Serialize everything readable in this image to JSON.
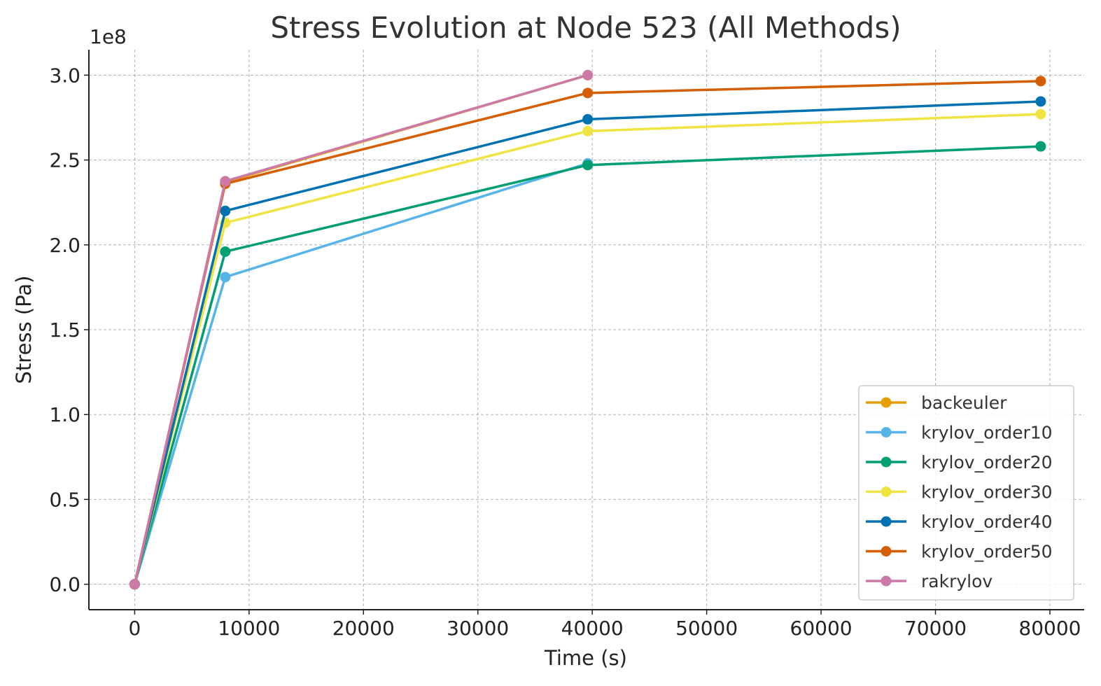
{
  "chart_data": {
    "type": "line",
    "title": "Stress Evolution at Node 523 (All Methods)",
    "xlabel": "Time (s)",
    "ylabel": "Stress (Pa)",
    "offset_label": "1e8",
    "xlim": [
      -4000,
      83000
    ],
    "ylim": [
      -0.15,
      3.15
    ],
    "x_ticks": [
      0,
      10000,
      20000,
      30000,
      40000,
      50000,
      60000,
      70000,
      80000
    ],
    "x_tick_labels": [
      "0",
      "10000",
      "20000",
      "30000",
      "40000",
      "50000",
      "60000",
      "70000",
      "80000"
    ],
    "y_ticks": [
      0.0,
      0.5,
      1.0,
      1.5,
      2.0,
      2.5,
      3.0
    ],
    "y_tick_labels": [
      "0.0",
      "0.5",
      "1.0",
      "1.5",
      "2.0",
      "2.5",
      "3.0"
    ],
    "grid": true,
    "legend_position": "lower-right",
    "series": [
      {
        "name": "backeuler",
        "color": "#E69F00",
        "x": [
          0,
          7920,
          39600
        ],
        "y": [
          0.0,
          2.37,
          3.0
        ]
      },
      {
        "name": "krylov_order10",
        "color": "#56B4E9",
        "x": [
          0,
          7920,
          39600
        ],
        "y": [
          0.0,
          1.81,
          2.48
        ]
      },
      {
        "name": "krylov_order20",
        "color": "#009E73",
        "x": [
          0,
          7920,
          39600,
          79200
        ],
        "y": [
          0.0,
          1.96,
          2.47,
          2.58
        ]
      },
      {
        "name": "krylov_order30",
        "color": "#F0E442",
        "x": [
          0,
          7920,
          39600,
          79200
        ],
        "y": [
          0.0,
          2.13,
          2.67,
          2.77
        ]
      },
      {
        "name": "krylov_order40",
        "color": "#0072B2",
        "x": [
          0,
          7920,
          39600,
          79200
        ],
        "y": [
          0.0,
          2.2,
          2.74,
          2.845
        ]
      },
      {
        "name": "krylov_order50",
        "color": "#D55E00",
        "x": [
          0,
          7920,
          39600,
          79200
        ],
        "y": [
          0.0,
          2.36,
          2.895,
          2.965
        ]
      },
      {
        "name": "rakrylov",
        "color": "#CC79A7",
        "x": [
          0,
          7920,
          39600
        ],
        "y": [
          0.0,
          2.375,
          3.0
        ]
      }
    ]
  }
}
